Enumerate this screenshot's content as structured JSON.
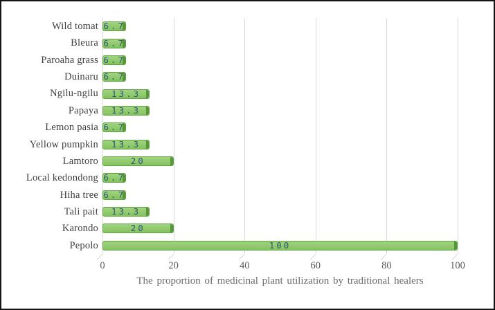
{
  "chart_data": {
    "type": "bar",
    "orientation": "horizontal",
    "title": "",
    "xlabel": "The proportion of medicinal plant utilization by traditional healers",
    "ylabel": "",
    "xlim": [
      0,
      100
    ],
    "x_ticks": [
      0,
      20,
      40,
      60,
      80,
      100
    ],
    "gridlines": "vertical",
    "legend": "none",
    "category_order": "top-to-bottom",
    "categories": [
      "Wild tomat",
      "Bleura",
      "Paroaha grass",
      "Duinaru",
      "Ngilu-ngilu",
      "Papaya",
      "Lemon pasia",
      "Yellow pumpkin",
      "Lamtoro",
      "Local kedondong",
      "Hiha tree",
      "Tali pait",
      "Karondo",
      "Pepolo"
    ],
    "values": [
      6.7,
      6.7,
      6.7,
      6.7,
      13.3,
      13.3,
      6.7,
      13.3,
      20,
      6.7,
      6.7,
      13.3,
      20,
      100
    ],
    "value_labels": [
      "6.7",
      "6.7",
      "6.7",
      "6.7",
      "13.3",
      "13.3",
      "6.7",
      "13.3",
      "20",
      "6.7",
      "6.7",
      "13.3",
      "20",
      "100"
    ],
    "colors": {
      "bar_fill_top": "#a2d381",
      "bar_fill_bottom": "#83c25f",
      "bar_border": "#5fa341",
      "bar_cap": "#569539",
      "value_label_text": "#2c5a74",
      "gridline": "#d9d9d9",
      "category_text": "#3f3f3f",
      "tick_text": "#595959",
      "axis_title_text": "#6b6b6b",
      "figure_border": "#141414",
      "background": "#ffffff"
    }
  }
}
